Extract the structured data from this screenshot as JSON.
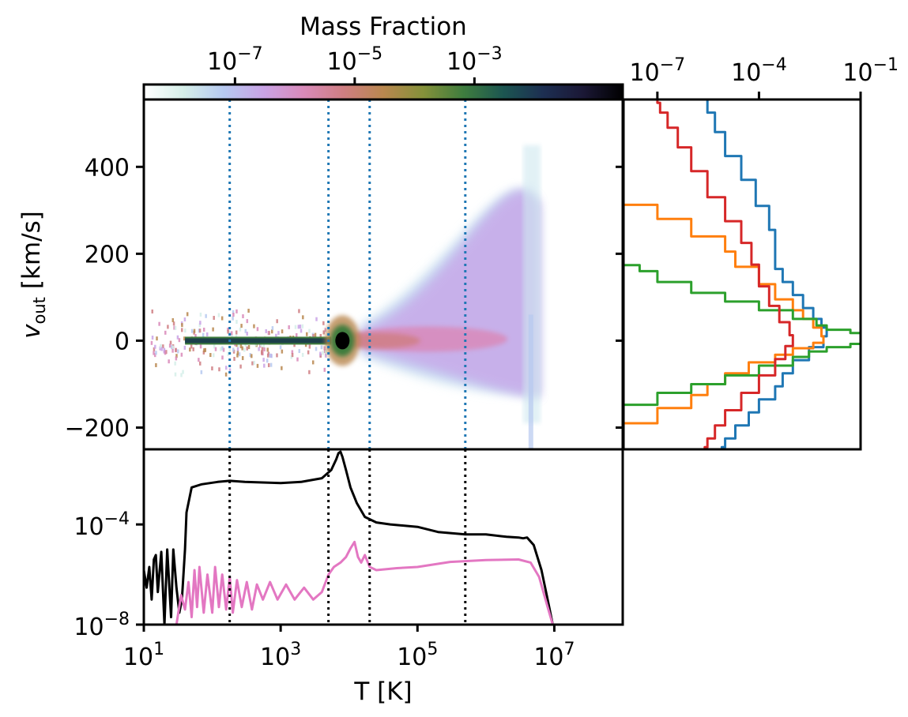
{
  "chart_data": [
    {
      "type": "heatmap",
      "panel": "main",
      "xlabel": "",
      "ylabel": "v_out [km/s]",
      "ylabel_main": "v",
      "ylabel_sub": "out",
      "ylabel_unit": "[km/s]",
      "xscale": "log",
      "xlim": [
        10,
        100000000
      ],
      "ylim": [
        -250,
        555
      ],
      "yticks": [
        -200,
        0,
        200,
        400
      ],
      "ytick_labels": [
        "−200",
        "0",
        "200",
        "400"
      ],
      "vlines_T": [
        180,
        5000,
        20000,
        500000
      ],
      "vline_color": "#1f77b4",
      "description_values": {
        "cold_band": {
          "T_min": 40,
          "T_max": 5500,
          "v": 0
        },
        "peak": {
          "T": 8000,
          "v": 0
        },
        "hot_cloud": {
          "T_min": 15000,
          "T_max": 6000000,
          "v_min": -130,
          "v_max": 450
        }
      },
      "colorbar": {
        "label": "Mass Fraction",
        "scale": "log",
        "range": [
          3e-09,
          0.3
        ],
        "tick_values": [
          1e-07,
          1e-05,
          0.001
        ],
        "tick_bases": [
          "10",
          "10",
          "10"
        ],
        "tick_exps": [
          "−7",
          "−5",
          "−3"
        ],
        "colormap": "cubehelix_r",
        "stops": [
          "#ffffff",
          "#d5efe9",
          "#b6c9f0",
          "#c9a3e6",
          "#d98aba",
          "#cf7e82",
          "#b9874f",
          "#85913a",
          "#3f7d3e",
          "#1c5651",
          "#1d2f52",
          "#1b1836",
          "#000000"
        ]
      }
    },
    {
      "type": "line",
      "panel": "bottom",
      "xlabel": "T [K]",
      "ylabel": "",
      "xscale": "log",
      "yscale": "log",
      "xlim": [
        10,
        100000000
      ],
      "ylim": [
        1e-08,
        0.1
      ],
      "xtick_bases": [
        "10",
        "10",
        "10",
        "10"
      ],
      "xtick_exps": [
        "1",
        "3",
        "5",
        "7"
      ],
      "xtick_values": [
        10,
        1000,
        100000,
        10000000
      ],
      "ytick_bases": [
        "10",
        "10"
      ],
      "ytick_exps": [
        "−8",
        "−4"
      ],
      "ytick_values": [
        1e-08,
        0.0001
      ],
      "vlines_T": [
        180,
        5000,
        20000,
        500000
      ],
      "vline_color": "#000000",
      "series": [
        {
          "color": "#000000",
          "points": [
            [
              10,
              1.5e-06
            ],
            [
              11,
              3e-07
            ],
            [
              12,
              2e-06
            ],
            [
              13,
              1e-07
            ],
            [
              14,
              4e-06
            ],
            [
              15,
              6e-06
            ],
            [
              16,
              2e-07
            ],
            [
              18,
              8e-06
            ],
            [
              20,
              1e-08
            ],
            [
              22,
              1e-05
            ],
            [
              25,
              2e-08
            ],
            [
              27,
              1e-05
            ],
            [
              30,
              3e-07
            ],
            [
              33,
              3e-08
            ],
            [
              36,
              1e-07
            ],
            [
              40,
              1e-05
            ],
            [
              42,
              0.0003
            ],
            [
              50,
              0.003
            ],
            [
              70,
              0.004
            ],
            [
              120,
              0.005
            ],
            [
              180,
              0.0055
            ],
            [
              300,
              0.005
            ],
            [
              1000,
              0.0045
            ],
            [
              2000,
              0.005
            ],
            [
              4000,
              0.007
            ],
            [
              5500,
              0.015
            ],
            [
              6500,
              0.04
            ],
            [
              7000,
              0.07
            ],
            [
              7500,
              0.08
            ],
            [
              8000,
              0.05
            ],
            [
              9000,
              0.015
            ],
            [
              10500,
              0.003
            ],
            [
              13000,
              0.0007
            ],
            [
              17000,
              0.0002
            ],
            [
              25000,
              0.00012
            ],
            [
              40000,
              0.0001
            ],
            [
              100000,
              8e-05
            ],
            [
              200000,
              5e-05
            ],
            [
              500000,
              4e-05
            ],
            [
              1000000,
              4e-05
            ],
            [
              2000000,
              3.2e-05
            ],
            [
              3000000,
              3e-05
            ],
            [
              3500000,
              2.8e-05
            ],
            [
              4000000,
              3e-05
            ],
            [
              5000000,
              1.5e-05
            ],
            [
              6500000,
              1.5e-06
            ],
            [
              8000000,
              1e-07
            ],
            [
              9500000,
              1e-08
            ]
          ]
        },
        {
          "color": "#e377c2",
          "points": [
            [
              30,
              1e-08
            ],
            [
              35,
              1.5e-07
            ],
            [
              40,
              4e-08
            ],
            [
              45,
              5e-07
            ],
            [
              50,
              2e-08
            ],
            [
              55,
              1.5e-06
            ],
            [
              60,
              5e-08
            ],
            [
              65,
              2e-06
            ],
            [
              75,
              3e-08
            ],
            [
              85,
              1e-06
            ],
            [
              100,
              3e-08
            ],
            [
              110,
              2e-06
            ],
            [
              125,
              5e-08
            ],
            [
              140,
              1e-06
            ],
            [
              160,
              4e-08
            ],
            [
              180,
              8e-07
            ],
            [
              200,
              3e-08
            ],
            [
              230,
              6e-07
            ],
            [
              270,
              5e-08
            ],
            [
              320,
              5e-07
            ],
            [
              380,
              4e-08
            ],
            [
              450,
              4e-07
            ],
            [
              550,
              1e-07
            ],
            [
              700,
              5e-07
            ],
            [
              900,
              1e-07
            ],
            [
              1200,
              4e-07
            ],
            [
              1600,
              1e-07
            ],
            [
              2200,
              3e-07
            ],
            [
              3000,
              1e-07
            ],
            [
              4000,
              2e-07
            ],
            [
              5000,
              1e-06
            ],
            [
              6000,
              2e-06
            ],
            [
              7500,
              3e-06
            ],
            [
              9000,
              5e-06
            ],
            [
              10500,
              1.1e-05
            ],
            [
              12000,
              2e-05
            ],
            [
              13500,
              5e-06
            ],
            [
              15000,
              3e-06
            ],
            [
              17000,
              6e-06
            ],
            [
              20000,
              2e-06
            ],
            [
              25000,
              1.5e-06
            ],
            [
              50000,
              1.8e-06
            ],
            [
              100000,
              2e-06
            ],
            [
              300000,
              3.2e-06
            ],
            [
              1000000,
              3.8e-06
            ],
            [
              3000000,
              4e-06
            ],
            [
              4500000,
              3e-06
            ],
            [
              6000000,
              8e-07
            ],
            [
              8000000,
              5e-08
            ],
            [
              9500000,
              1e-08
            ]
          ]
        }
      ]
    },
    {
      "type": "line",
      "panel": "side",
      "xscale": "log",
      "xlim": [
        1e-08,
        0.1
      ],
      "ylim": [
        -250,
        555
      ],
      "xtick_bases": [
        "10",
        "10",
        "10"
      ],
      "xtick_exps": [
        "−7",
        "−4",
        "−1"
      ],
      "xtick_values": [
        1e-07,
        0.0001,
        0.1
      ],
      "series": [
        {
          "color": "#1f77b4",
          "points": [
            [
              3e-06,
              560
            ],
            [
              3e-06,
              540
            ],
            [
              5e-06,
              510
            ],
            [
              1e-05,
              450
            ],
            [
              3e-05,
              400
            ],
            [
              8e-05,
              340
            ],
            [
              0.0002,
              280
            ],
            [
              0.0003,
              230
            ],
            [
              0.0003,
              180
            ],
            [
              0.0005,
              150
            ],
            [
              0.001,
              120
            ],
            [
              0.002,
              90
            ],
            [
              0.004,
              60
            ],
            [
              0.007,
              40
            ],
            [
              0.01,
              20
            ],
            [
              0.008,
              0
            ],
            [
              0.003,
              -30
            ],
            [
              0.001,
              -60
            ],
            [
              0.0005,
              -90
            ],
            [
              0.0003,
              -120
            ],
            [
              0.0001,
              -150
            ],
            [
              5e-05,
              -180
            ],
            [
              2e-05,
              -210
            ],
            [
              1e-05,
              -240
            ],
            [
              8e-06,
              -250
            ]
          ]
        },
        {
          "color": "#ff7f0e",
          "points": [
            [
              1e-08,
              325
            ],
            [
              1e-07,
              300
            ],
            [
              1e-06,
              260
            ],
            [
              1e-05,
              220
            ],
            [
              2e-05,
              190
            ],
            [
              0.0001,
              150
            ],
            [
              0.0003,
              110
            ],
            [
              0.001,
              80
            ],
            [
              0.002,
              60
            ],
            [
              0.004,
              40
            ],
            [
              0.007,
              20
            ],
            [
              0.008,
              0
            ],
            [
              0.004,
              -10
            ],
            [
              0.001,
              -25
            ],
            [
              0.0003,
              -40
            ],
            [
              5e-05,
              -60
            ],
            [
              1e-05,
              -90
            ],
            [
              3e-06,
              -110
            ],
            [
              1e-06,
              -140
            ],
            [
              1e-07,
              -170
            ],
            [
              1e-08,
              -210
            ]
          ]
        },
        {
          "color": "#2ca02c",
          "points": [
            [
              1e-08,
              178
            ],
            [
              3e-08,
              170
            ],
            [
              1e-07,
              150
            ],
            [
              1e-06,
              120
            ],
            [
              1e-05,
              100
            ],
            [
              0.0001,
              80
            ],
            [
              0.001,
              60
            ],
            [
              0.005,
              40
            ],
            [
              0.01,
              30
            ],
            [
              0.05,
              20
            ],
            [
              0.1,
              15
            ],
            [
              0.1,
              -5
            ],
            [
              0.05,
              -10
            ],
            [
              0.01,
              -20
            ],
            [
              0.003,
              -30
            ],
            [
              0.001,
              -45
            ],
            [
              0.0001,
              -70
            ],
            [
              1e-05,
              -90
            ],
            [
              1e-06,
              -110
            ],
            [
              1e-07,
              -130
            ],
            [
              1e-08,
              -165
            ]
          ]
        },
        {
          "color": "#d62728",
          "points": [
            [
              1e-07,
              555
            ],
            [
              1.2e-07,
              540
            ],
            [
              2e-07,
              510
            ],
            [
              4e-07,
              470
            ],
            [
              1e-06,
              420
            ],
            [
              3e-06,
              360
            ],
            [
              1e-05,
              300
            ],
            [
              3e-05,
              250
            ],
            [
              6e-05,
              200
            ],
            [
              0.0001,
              150
            ],
            [
              0.0002,
              100
            ],
            [
              0.0004,
              60
            ],
            [
              0.0008,
              25
            ],
            [
              0.001,
              0
            ],
            [
              0.0006,
              -25
            ],
            [
              0.0003,
              -60
            ],
            [
              0.0001,
              -100
            ],
            [
              3e-05,
              -140
            ],
            [
              1e-05,
              -180
            ],
            [
              5e-06,
              -210
            ],
            [
              3e-06,
              -240
            ],
            [
              2.5e-06,
              -250
            ]
          ]
        }
      ]
    }
  ]
}
